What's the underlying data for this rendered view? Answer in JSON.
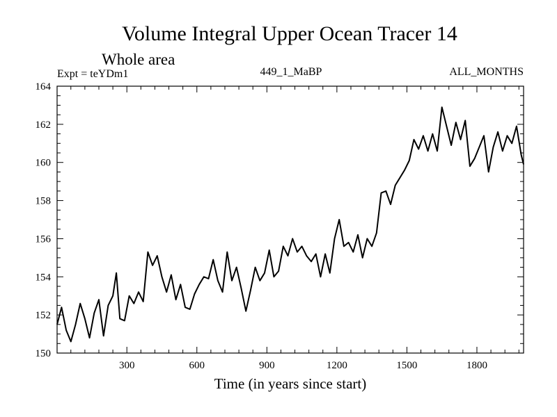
{
  "chart_data": {
    "type": "line",
    "title": "Volume Integral Upper Ocean Tracer 14",
    "subtitle": "Whole area",
    "experiment_label": "Expt = teYDm1",
    "run_label": "449_1_MaBP",
    "months_label": "ALL_MONTHS",
    "xlabel": "Time (in years since start)",
    "ylabel": "",
    "xlim": [
      1,
      2000
    ],
    "ylim": [
      150,
      164
    ],
    "x_ticks": [
      300,
      600,
      900,
      1200,
      1500,
      1800
    ],
    "y_ticks": [
      150,
      152,
      154,
      156,
      158,
      160,
      162,
      164
    ],
    "grid": false,
    "series": [
      {
        "name": "Tracer 14 volume integral",
        "color": "#000000",
        "x": [
          1,
          20,
          40,
          60,
          80,
          100,
          120,
          140,
          160,
          180,
          200,
          220,
          240,
          255,
          270,
          290,
          310,
          330,
          350,
          370,
          390,
          410,
          430,
          450,
          470,
          490,
          510,
          530,
          550,
          570,
          590,
          610,
          630,
          650,
          670,
          690,
          710,
          730,
          750,
          770,
          790,
          810,
          830,
          850,
          870,
          890,
          910,
          930,
          950,
          970,
          990,
          1010,
          1030,
          1050,
          1070,
          1090,
          1110,
          1130,
          1150,
          1170,
          1190,
          1210,
          1230,
          1250,
          1270,
          1290,
          1310,
          1330,
          1350,
          1370,
          1390,
          1410,
          1430,
          1450,
          1470,
          1490,
          1510,
          1530,
          1550,
          1570,
          1590,
          1610,
          1630,
          1650,
          1670,
          1690,
          1710,
          1730,
          1750,
          1770,
          1790,
          1810,
          1830,
          1850,
          1870,
          1890,
          1910,
          1930,
          1950,
          1970,
          1990,
          2000
        ],
        "y": [
          151.5,
          152.4,
          151.2,
          150.6,
          151.5,
          152.6,
          151.8,
          150.8,
          152.1,
          152.8,
          150.9,
          152.5,
          153.0,
          154.2,
          151.8,
          151.7,
          153.0,
          152.6,
          153.2,
          152.7,
          155.3,
          154.6,
          155.1,
          154.0,
          153.2,
          154.1,
          152.8,
          153.6,
          152.4,
          152.3,
          153.1,
          153.6,
          154.0,
          153.9,
          154.9,
          153.8,
          153.2,
          155.3,
          153.8,
          154.5,
          153.4,
          152.2,
          153.3,
          154.5,
          153.8,
          154.2,
          155.4,
          154.0,
          154.3,
          155.6,
          155.1,
          156.0,
          155.3,
          155.6,
          155.1,
          154.8,
          155.2,
          154.0,
          155.2,
          154.2,
          156.0,
          157.0,
          155.6,
          155.8,
          155.3,
          156.2,
          155.0,
          156.0,
          155.6,
          156.3,
          158.4,
          158.5,
          157.8,
          158.8,
          159.2,
          159.6,
          160.1,
          161.2,
          160.7,
          161.4,
          160.6,
          161.5,
          160.6,
          162.9,
          161.9,
          160.9,
          162.1,
          161.2,
          162.2,
          159.8,
          160.2,
          160.8,
          161.4,
          159.5,
          160.8,
          161.6,
          160.6,
          161.4,
          161.0,
          161.9,
          160.4,
          159.9
        ]
      }
    ]
  }
}
